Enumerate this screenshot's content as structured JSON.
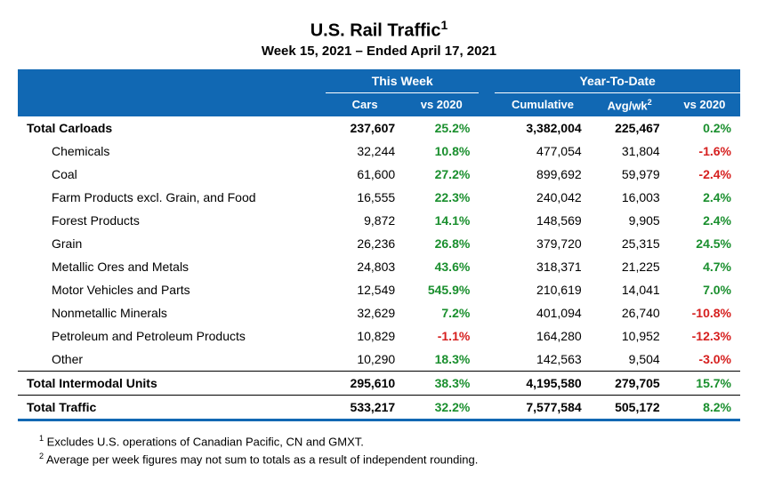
{
  "title": "U.S. Rail Traffic",
  "title_sup": "1",
  "subtitle": "Week 15, 2021 – Ended April 17, 2021",
  "headers": {
    "this_week": "This Week",
    "ytd": "Year-To-Date",
    "cars": "Cars",
    "vs2020_a": "vs 2020",
    "cumulative": "Cumulative",
    "avgwk": "Avg/wk",
    "avgwk_sup": "2",
    "vs2020_b": "vs 2020"
  },
  "colors": {
    "header_bg": "#1168b3",
    "header_fg": "#ffffff",
    "positive": "#1a8f2e",
    "negative": "#d6201f",
    "bg": "#ffffff",
    "fg": "#000000"
  },
  "rows": [
    {
      "label": "Total Carloads",
      "cars": "237,607",
      "vs_week": "25.2%",
      "vs_week_sign": "pos",
      "cum": "3,382,004",
      "avg": "225,467",
      "vs_ytd": "0.2%",
      "vs_ytd_sign": "pos",
      "bold": true,
      "indent": false,
      "rule": false
    },
    {
      "label": "Chemicals",
      "cars": "32,244",
      "vs_week": "10.8%",
      "vs_week_sign": "pos",
      "cum": "477,054",
      "avg": "31,804",
      "vs_ytd": "-1.6%",
      "vs_ytd_sign": "neg",
      "bold": false,
      "indent": true,
      "rule": false
    },
    {
      "label": "Coal",
      "cars": "61,600",
      "vs_week": "27.2%",
      "vs_week_sign": "pos",
      "cum": "899,692",
      "avg": "59,979",
      "vs_ytd": "-2.4%",
      "vs_ytd_sign": "neg",
      "bold": false,
      "indent": true,
      "rule": false
    },
    {
      "label": "Farm Products excl. Grain, and Food",
      "cars": "16,555",
      "vs_week": "22.3%",
      "vs_week_sign": "pos",
      "cum": "240,042",
      "avg": "16,003",
      "vs_ytd": "2.4%",
      "vs_ytd_sign": "pos",
      "bold": false,
      "indent": true,
      "rule": false
    },
    {
      "label": "Forest Products",
      "cars": "9,872",
      "vs_week": "14.1%",
      "vs_week_sign": "pos",
      "cum": "148,569",
      "avg": "9,905",
      "vs_ytd": "2.4%",
      "vs_ytd_sign": "pos",
      "bold": false,
      "indent": true,
      "rule": false
    },
    {
      "label": "Grain",
      "cars": "26,236",
      "vs_week": "26.8%",
      "vs_week_sign": "pos",
      "cum": "379,720",
      "avg": "25,315",
      "vs_ytd": "24.5%",
      "vs_ytd_sign": "pos",
      "bold": false,
      "indent": true,
      "rule": false
    },
    {
      "label": "Metallic Ores and Metals",
      "cars": "24,803",
      "vs_week": "43.6%",
      "vs_week_sign": "pos",
      "cum": "318,371",
      "avg": "21,225",
      "vs_ytd": "4.7%",
      "vs_ytd_sign": "pos",
      "bold": false,
      "indent": true,
      "rule": false
    },
    {
      "label": "Motor Vehicles and Parts",
      "cars": "12,549",
      "vs_week": "545.9%",
      "vs_week_sign": "pos",
      "cum": "210,619",
      "avg": "14,041",
      "vs_ytd": "7.0%",
      "vs_ytd_sign": "pos",
      "bold": false,
      "indent": true,
      "rule": false
    },
    {
      "label": "Nonmetallic Minerals",
      "cars": "32,629",
      "vs_week": "7.2%",
      "vs_week_sign": "pos",
      "cum": "401,094",
      "avg": "26,740",
      "vs_ytd": "-10.8%",
      "vs_ytd_sign": "neg",
      "bold": false,
      "indent": true,
      "rule": false
    },
    {
      "label": "Petroleum and Petroleum Products",
      "cars": "10,829",
      "vs_week": "-1.1%",
      "vs_week_sign": "neg",
      "cum": "164,280",
      "avg": "10,952",
      "vs_ytd": "-12.3%",
      "vs_ytd_sign": "neg",
      "bold": false,
      "indent": true,
      "rule": false
    },
    {
      "label": "Other",
      "cars": "10,290",
      "vs_week": "18.3%",
      "vs_week_sign": "pos",
      "cum": "142,563",
      "avg": "9,504",
      "vs_ytd": "-3.0%",
      "vs_ytd_sign": "neg",
      "bold": false,
      "indent": true,
      "rule": true
    },
    {
      "label": "Total Intermodal Units",
      "cars": "295,610",
      "vs_week": "38.3%",
      "vs_week_sign": "pos",
      "cum": "4,195,580",
      "avg": "279,705",
      "vs_ytd": "15.7%",
      "vs_ytd_sign": "pos",
      "bold": true,
      "indent": false,
      "rule": true
    },
    {
      "label": "Total Traffic",
      "cars": "533,217",
      "vs_week": "32.2%",
      "vs_week_sign": "pos",
      "cum": "7,577,584",
      "avg": "505,172",
      "vs_ytd": "8.2%",
      "vs_ytd_sign": "pos",
      "bold": true,
      "indent": false,
      "rule": false
    }
  ],
  "footnotes": [
    {
      "sup": "1",
      "text": " Excludes U.S. operations of Canadian Pacific, CN and GMXT."
    },
    {
      "sup": "2",
      "text": " Average per week figures may not sum to totals as a result of independent rounding."
    }
  ]
}
